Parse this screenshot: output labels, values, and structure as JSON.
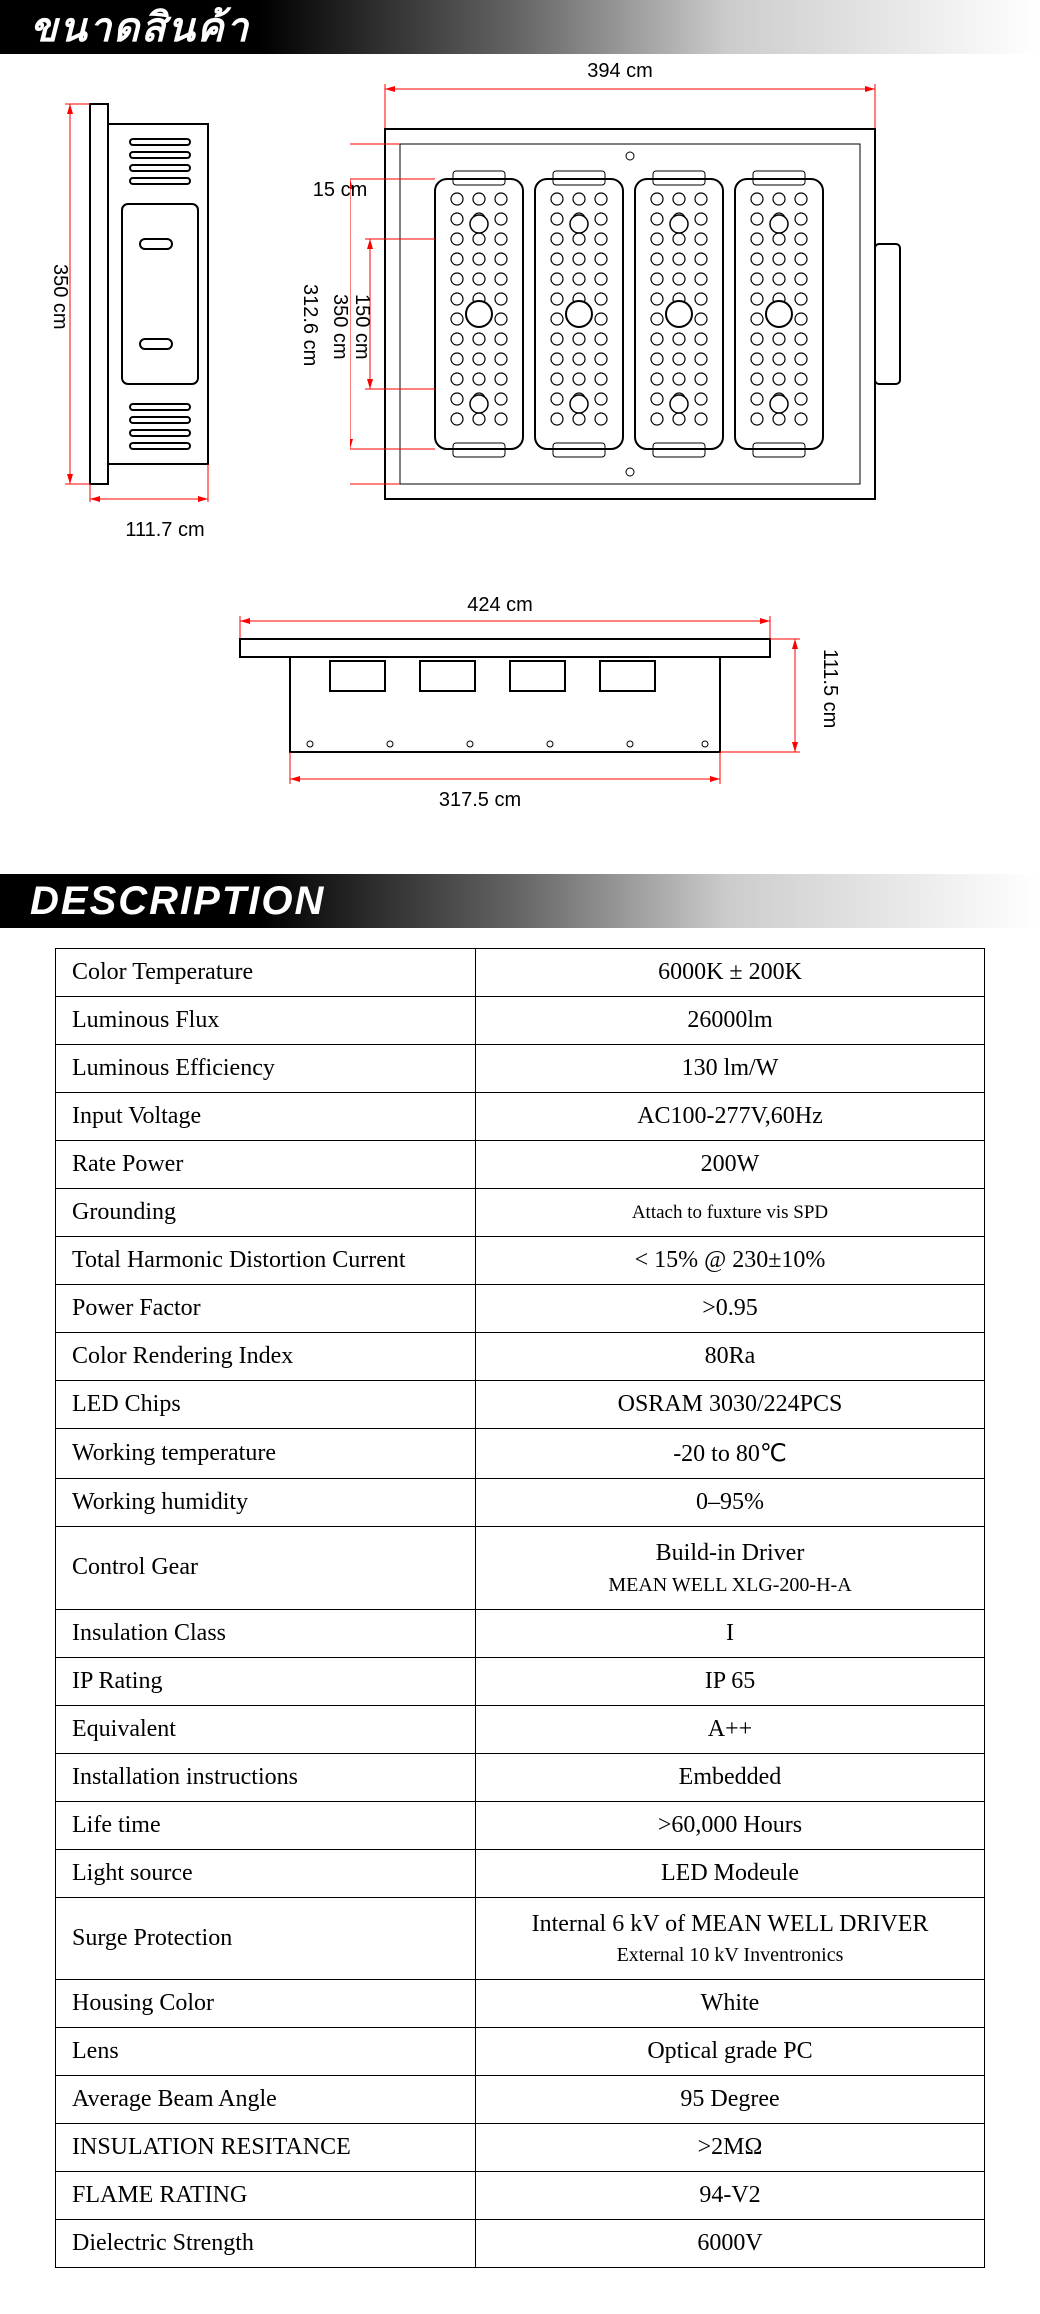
{
  "headers": {
    "dimensions": "ขนาดสินค้า",
    "description": "DESCRIPTION"
  },
  "diagram": {
    "type": "technical-drawing",
    "stroke": "#000000",
    "dim_stroke": "#ff0000",
    "dimensions": {
      "d350": "350 cm",
      "d111_7": "111.7 cm",
      "d312_6": "312.6 cm",
      "d350b": "350 cm",
      "d150": "150 cm",
      "d15": "15 cm",
      "d394": "394 cm",
      "d424": "424 cm",
      "d317_5": "317.5 cm",
      "d111_5": "111.5 cm"
    }
  },
  "specs": [
    {
      "label": "Color Temperature",
      "value": "6000K ± 200K"
    },
    {
      "label": "Luminous Flux",
      "value": "26000lm"
    },
    {
      "label": "Luminous Efficiency",
      "value": "130 lm/W"
    },
    {
      "label": "Input Voltage",
      "value": "AC100-277V,60Hz"
    },
    {
      "label": "Rate Power",
      "value": "200W"
    },
    {
      "label": "Grounding",
      "value": "Attach to fuxture vis SPD"
    },
    {
      "label": "Total Harmonic Distortion Current",
      "value": "< 15% @ 230±10%"
    },
    {
      "label": "Power Factor",
      "value": ">0.95"
    },
    {
      "label": "Color Rendering Index",
      "value": "80Ra"
    },
    {
      "label": "LED Chips",
      "value": "OSRAM 3030/224PCS"
    },
    {
      "label": "Working temperature",
      "value": "-20 to 80℃"
    },
    {
      "label": "Working humidity",
      "value": "0–95%"
    },
    {
      "label": "Control Gear",
      "value": "Build-in Driver",
      "sub": "MEAN WELL XLG-200-H-A"
    },
    {
      "label": "Insulation Class",
      "value": "I"
    },
    {
      "label": "IP Rating",
      "value": "IP 65"
    },
    {
      "label": "Equivalent",
      "value": "A++"
    },
    {
      "label": "Installation instructions",
      "value": "Embedded"
    },
    {
      "label": "Life time",
      "value": ">60,000 Hours"
    },
    {
      "label": "Light source",
      "value": "LED Modeule"
    },
    {
      "label": "Surge Protection",
      "value": "Internal 6 kV of MEAN WELL DRIVER",
      "sub": "External 10 kV Inventronics"
    },
    {
      "label": "Housing Color",
      "value": "White"
    },
    {
      "label": "Lens",
      "value": "Optical grade PC"
    },
    {
      "label": "Average Beam Angle",
      "value": "95 Degree"
    },
    {
      "label": "INSULATION RESITANCE",
      "value": ">2MΩ"
    },
    {
      "label": "FLAME RATING",
      "value": "94-V2"
    },
    {
      "label": "Dielectric Strength",
      "value": "6000V"
    }
  ]
}
